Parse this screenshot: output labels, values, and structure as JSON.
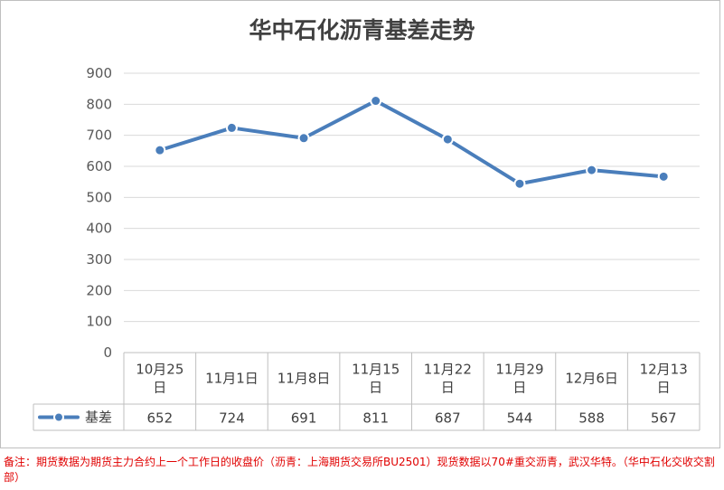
{
  "title": "华中石化沥青基差走势",
  "footnote": "备注：期货数据为期货主力合约上一个工作日的收盘价（沥青：上海期货交易所BU2501）现货数据以70#重交沥青，武汉华特。（华中石化交收交割部）",
  "colors": {
    "series": "#4a7ebb",
    "grid": "#d9d9d9",
    "table_border": "#bfbfbf"
  },
  "chart_data": {
    "type": "line",
    "title": "华中石化沥青基差走势",
    "categories": [
      [
        "10月25",
        "日"
      ],
      [
        "11月1日"
      ],
      [
        "11月8日"
      ],
      [
        "11月15",
        "日"
      ],
      [
        "11月22",
        "日"
      ],
      [
        "11月29",
        "日"
      ],
      [
        "12月6日"
      ],
      [
        "12月13",
        "日"
      ]
    ],
    "series": [
      {
        "name": "基差",
        "values": [
          652,
          724,
          691,
          811,
          687,
          544,
          588,
          567
        ]
      }
    ],
    "ylim": [
      0,
      900
    ],
    "yticks": [
      0,
      100,
      200,
      300,
      400,
      500,
      600,
      700,
      800,
      900
    ],
    "grid": true,
    "legend": "data-table-left",
    "xlabel": "",
    "ylabel": ""
  }
}
